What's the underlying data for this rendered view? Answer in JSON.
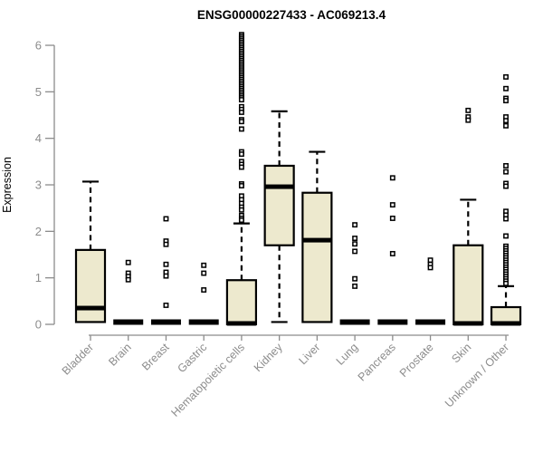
{
  "title": "ENSG00000227433 - AC069213.4",
  "axes": {
    "y_label": "Expression",
    "y_ticks": [
      0,
      1,
      2,
      3,
      4,
      5,
      6
    ],
    "y_range": [
      0,
      6.3
    ],
    "grid": false,
    "legend": "none"
  },
  "colors": {
    "box_fill": "#EDE9CE",
    "box_stroke": "#000000",
    "median": "#000000",
    "whisker": "#000000",
    "outlier_stroke": "#000000",
    "outlier_fill": "#FFFFFF",
    "axis": "#8C8C8C",
    "tick_text": "#8C8C8C",
    "title_text": "#000000",
    "background": "#FFFFFF"
  },
  "chart_data": {
    "type": "boxplot",
    "title": "ENSG00000227433 - AC069213.4",
    "xlabel": "",
    "ylabel": "Expression",
    "ylim": [
      0,
      6.3
    ],
    "categories": [
      "Bladder",
      "Brain",
      "Breast",
      "Gastric",
      "Hematopoietic cells",
      "Kidney",
      "Liver",
      "Lung",
      "Pancreas",
      "Prostate",
      "Skin",
      "Unknown / Other"
    ],
    "boxes": [
      {
        "category": "Bladder",
        "q1": 0.05,
        "median": 0.35,
        "q3": 1.6,
        "whisker_low": null,
        "whisker_high": 3.07,
        "outliers": []
      },
      {
        "category": "Brain",
        "q1": 0,
        "median": 0,
        "q3": 0,
        "whisker_low": null,
        "whisker_high": null,
        "outliers": [
          1.33,
          1.1,
          1.03,
          0.96
        ]
      },
      {
        "category": "Breast",
        "q1": 0,
        "median": 0,
        "q3": 0,
        "whisker_low": null,
        "whisker_high": null,
        "outliers": [
          2.27,
          1.79,
          1.72,
          1.29,
          1.12,
          1.04,
          0.41
        ]
      },
      {
        "category": "Gastric",
        "q1": 0,
        "median": 0,
        "q3": 0,
        "whisker_low": null,
        "whisker_high": null,
        "outliers": [
          1.27,
          1.1,
          0.74
        ]
      },
      {
        "category": "Hematopoietic cells",
        "q1": 0,
        "median": 0.02,
        "q3": 0.95,
        "whisker_low": null,
        "whisker_high": 2.17,
        "outliers": [
          6.23,
          6.19,
          6.15,
          6.11,
          6.07,
          6.03,
          5.99,
          5.95,
          5.91,
          5.87,
          5.83,
          5.79,
          5.75,
          5.71,
          5.67,
          5.63,
          5.59,
          5.55,
          5.51,
          5.47,
          5.43,
          5.39,
          5.35,
          5.31,
          5.27,
          5.23,
          5.19,
          5.15,
          5.11,
          5.07,
          5.03,
          4.99,
          4.95,
          4.91,
          4.87,
          4.83,
          4.68,
          4.62,
          4.56,
          4.4,
          4.36,
          4.2,
          3.71,
          3.66,
          3.5,
          3.44,
          3.38,
          3.02,
          2.98,
          2.76,
          2.68,
          2.6,
          2.52,
          2.46,
          2.34,
          2.28,
          2.24
        ]
      },
      {
        "category": "Kidney",
        "q1": 1.7,
        "median": 2.96,
        "q3": 3.41,
        "whisker_low": 0.05,
        "whisker_high": 4.58,
        "outliers": []
      },
      {
        "category": "Liver",
        "q1": 0.05,
        "median": 1.81,
        "q3": 2.83,
        "whisker_low": null,
        "whisker_high": 3.71,
        "outliers": []
      },
      {
        "category": "Lung",
        "q1": 0,
        "median": 0,
        "q3": 0,
        "whisker_low": null,
        "whisker_high": null,
        "outliers": [
          2.14,
          1.85,
          1.73,
          1.57,
          0.98,
          0.82
        ]
      },
      {
        "category": "Pancreas",
        "q1": 0,
        "median": 0,
        "q3": 0,
        "whisker_low": null,
        "whisker_high": null,
        "outliers": [
          3.15,
          2.57,
          2.28,
          1.52
        ]
      },
      {
        "category": "Prostate",
        "q1": 0,
        "median": 0,
        "q3": 0,
        "whisker_low": null,
        "whisker_high": null,
        "outliers": [
          1.38,
          1.29,
          1.22
        ]
      },
      {
        "category": "Skin",
        "q1": 0,
        "median": 0.02,
        "q3": 1.7,
        "whisker_low": null,
        "whisker_high": 2.68,
        "outliers": [
          4.6,
          4.46,
          4.39
        ]
      },
      {
        "category": "Unknown / Other",
        "q1": 0,
        "median": 0.02,
        "q3": 0.37,
        "whisker_low": null,
        "whisker_high": 0.82,
        "outliers": [
          5.32,
          5.07,
          4.86,
          4.81,
          4.46,
          4.38,
          4.27,
          3.41,
          3.28,
          3.03,
          2.97,
          2.43,
          2.35,
          2.27,
          1.9,
          1.68,
          1.63,
          1.58,
          1.53,
          1.48,
          1.43,
          1.38,
          1.33,
          1.28,
          1.23,
          1.18,
          1.13,
          1.08,
          1.03,
          0.98,
          0.93,
          0.88
        ]
      }
    ]
  }
}
